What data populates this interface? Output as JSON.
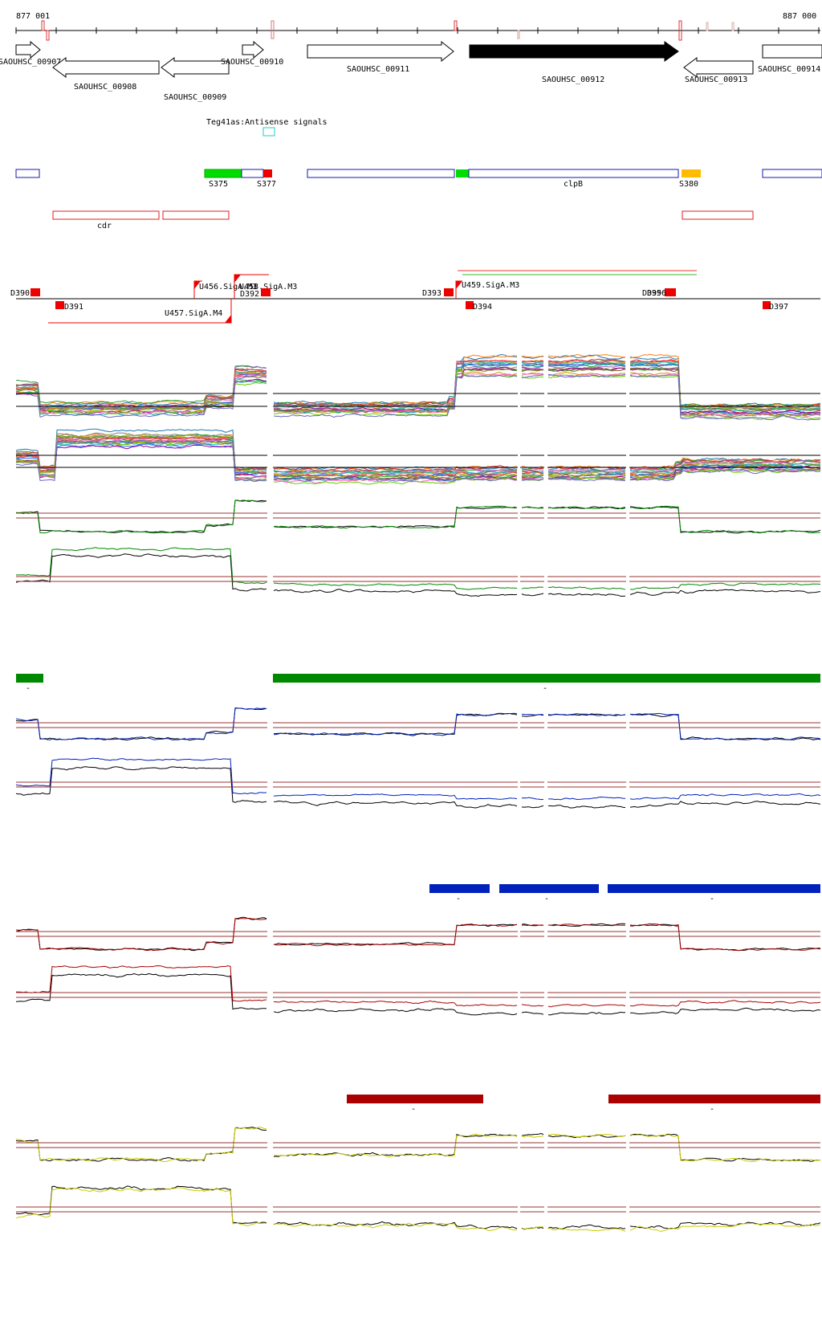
{
  "coords": {
    "start": "877 001",
    "end": "887 000"
  },
  "genes": [
    {
      "id": "SAOUHSC_00907",
      "label": "SAOUHSC_00907",
      "dir": "right"
    },
    {
      "id": "SAOUHSC_00908",
      "label": "SAOUHSC_00908",
      "dir": "left"
    },
    {
      "id": "SAOUHSC_00909",
      "label": "SAOUHSC_00909",
      "dir": "left"
    },
    {
      "id": "SAOUHSC_00910",
      "label": "SAOUHSC_00910",
      "dir": "right"
    },
    {
      "id": "SAOUHSC_00911",
      "label": "SAOUHSC_00911",
      "dir": "right"
    },
    {
      "id": "SAOUHSC_00912",
      "label": "SAOUHSC_00912",
      "dir": "right",
      "highlighted": true
    },
    {
      "id": "SAOUHSC_00913",
      "label": "SAOUHSC_00913",
      "dir": "left"
    },
    {
      "id": "SAOUHSC_00914",
      "label": "SAOUHSC_00914",
      "dir": "right"
    }
  ],
  "antisense": {
    "label": "Teg41as:Antisense signals"
  },
  "segments": [
    {
      "label": "S375",
      "color": "#00dd00"
    },
    {
      "label": "S377",
      "color": "#ee0000"
    },
    {
      "label": "clpB",
      "color": "#1a1aaa"
    },
    {
      "label": "S380",
      "color": "#ffbb00"
    }
  ],
  "regulons": [
    {
      "label": "cdr"
    }
  ],
  "promoters": [
    {
      "label": "U456.SigA.M3"
    },
    {
      "label": "U458.SigA.M3"
    },
    {
      "label": "U457.SigA.M4"
    },
    {
      "label": "U459.SigA.M3"
    }
  ],
  "terminators": [
    {
      "label": "D390"
    },
    {
      "label": "D391"
    },
    {
      "label": "D392"
    },
    {
      "label": "D393"
    },
    {
      "label": "D394"
    },
    {
      "label": "D395"
    },
    {
      "label": "D396"
    },
    {
      "label": "D397"
    }
  ],
  "condition_groups": [
    {
      "name": "green",
      "color": "#008800",
      "bar_marks": [
        "-",
        "-"
      ]
    },
    {
      "name": "blue",
      "color": "#0022bb",
      "bar_marks": [
        "-",
        "-",
        "-"
      ]
    },
    {
      "name": "red",
      "color": "#aa0000",
      "bar_marks": [
        "-",
        "-"
      ]
    },
    {
      "name": "yellow",
      "color": "#cccc00",
      "bar_marks": []
    }
  ],
  "colors": {
    "gene_fill_highlight": "#000000",
    "promoter_red": "#ee0000",
    "threshold_line": "#993333",
    "multi_series": [
      "#1f77b4",
      "#ff7f0e",
      "#2ca02c",
      "#d62728",
      "#9467bd",
      "#8c564b",
      "#e377c2",
      "#7f7f7f",
      "#bcbd22",
      "#17becf",
      "#ff3333",
      "#33aa33",
      "#3366ff",
      "#cc9900",
      "#990099",
      "#009999",
      "#996633",
      "#ff66cc",
      "#66cc00",
      "#6666cc"
    ]
  }
}
